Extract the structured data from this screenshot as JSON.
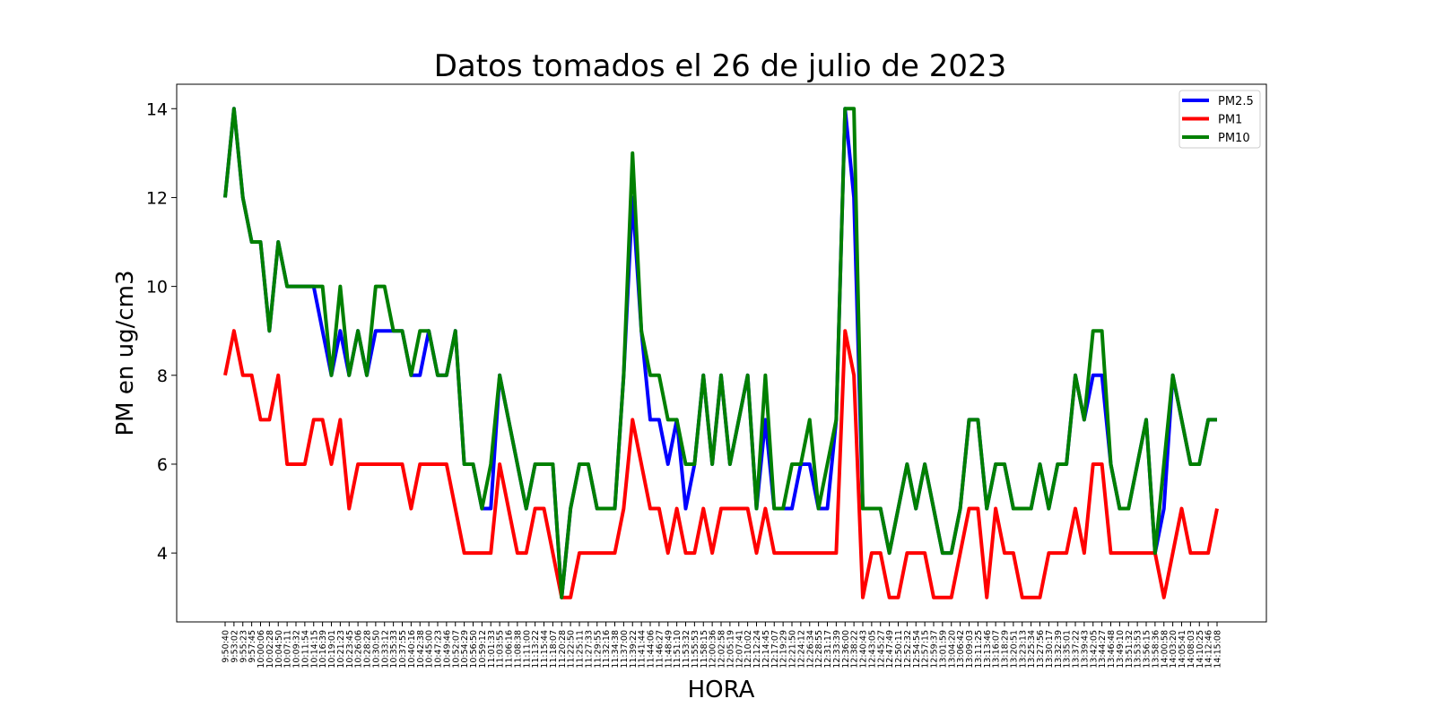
{
  "chart_data": {
    "type": "line",
    "title": "Datos tomados el 26 de julio de 2023",
    "xlabel": "HORA",
    "ylabel": "PM en ug/cm3",
    "ylim": [
      2.45,
      14.55
    ],
    "yticks": [
      4,
      6,
      8,
      10,
      12,
      14
    ],
    "grid": false,
    "legend_position": "top-right",
    "categories": [
      "9:50:40",
      "9:53:02",
      "9:55:23",
      "9:57:45",
      "10:00:06",
      "10:02:28",
      "10:04:50",
      "10:07:11",
      "10:09:32",
      "10:11:54",
      "10:14:15",
      "10:16:39",
      "10:19:01",
      "10:21:23",
      "10:23:45",
      "10:26:06",
      "10:28:28",
      "10:30:50",
      "10:33:12",
      "10:35:33",
      "10:37:55",
      "10:40:16",
      "10:42:38",
      "10:45:00",
      "10:47:23",
      "10:49:46",
      "10:52:07",
      "10:54:29",
      "10:56:50",
      "10:59:12",
      "11:01:33",
      "11:03:55",
      "11:06:16",
      "11:08:38",
      "11:11:00",
      "11:13:22",
      "11:15:44",
      "11:18:07",
      "11:20:28",
      "11:22:50",
      "11:25:11",
      "11:27:33",
      "11:29:55",
      "11:32:16",
      "11:34:38",
      "11:37:00",
      "11:39:22",
      "11:41:44",
      "11:44:06",
      "11:46:27",
      "11:48:49",
      "11:51:10",
      "11:53:32",
      "11:55:53",
      "11:58:15",
      "12:00:36",
      "12:02:58",
      "12:05:19",
      "12:07:41",
      "12:10:02",
      "12:12:24",
      "12:14:45",
      "12:17:07",
      "12:19:29",
      "12:21:50",
      "12:24:12",
      "12:26:34",
      "12:28:55",
      "12:31:17",
      "12:33:39",
      "12:36:00",
      "12:38:22",
      "12:40:43",
      "12:43:05",
      "12:45:27",
      "12:47:49",
      "12:50:11",
      "12:52:32",
      "12:54:54",
      "12:57:15",
      "12:59:37",
      "13:01:59",
      "13:04:20",
      "13:06:42",
      "13:09:03",
      "13:11:25",
      "13:13:46",
      "13:16:07",
      "13:18:29",
      "13:20:51",
      "13:23:13",
      "13:25:34",
      "13:27:56",
      "13:30:17",
      "13:32:39",
      "13:35:01",
      "13:37:22",
      "13:39:43",
      "13:42:05",
      "13:44:27",
      "13:46:48",
      "13:49:10",
      "13:51:32",
      "13:53:53",
      "13:56:15",
      "13:58:36",
      "14:00:58",
      "14:03:20",
      "14:05:41",
      "14:08:03",
      "14:10:25",
      "14:12:46",
      "14:15:08"
    ],
    "visible_tick_labels": [
      "9:50:40",
      "9:53:02",
      "9:55:23",
      "9:57:45",
      "10:00:06",
      "10:02:28",
      "10:04:50",
      "10:07:11",
      "10:09:32",
      "10:11:54",
      "10:14:15",
      "10:16:39",
      "10:19:01",
      "10:21:23",
      "10:23:45",
      "10:26:06",
      "10:28:28",
      "10:30:50",
      "10:33:12",
      "10:35:33",
      "10:37:55",
      "10:40:16",
      "10:42:38",
      "10:45:00",
      "10:47:23",
      "10:49:46",
      "10:52:07",
      "10:54:29",
      "10:56:50",
      "10:59:12",
      "11:01:33",
      "11:03:55",
      "11:06:16",
      "11:08:38",
      "11:11:00",
      "11:13:22",
      "11:15:44",
      "11:18:07",
      "11:20:28",
      "11:22:50",
      "11:25:11",
      "11:27:33",
      "11:29:55",
      "11:32:16",
      "11:34:38",
      "11:37:00",
      "11:39:22",
      "11:41:44",
      "11:44:06",
      "11:46:27",
      "11:48:49",
      "11:51:10",
      "11:53:32",
      "11:55:53",
      "11:58:15",
      "12:00:36",
      "12:02:58",
      "12:05:19",
      "12:07:41",
      "12:10:02",
      "12:12:24",
      "12:14:45",
      "12:17:07",
      "12:19:29",
      "12:21:50",
      "12:24:12",
      "12:26:34",
      "12:28:55",
      "12:31:17",
      "12:33:39",
      "12:36:00",
      "12:38:22",
      "12:40:43",
      "12:43:05",
      "12:45:27",
      "12:47:49",
      "12:50:11",
      "12:52:32",
      "12:54:54",
      "12:57:15",
      "12:59:37",
      "13:01:59",
      "13:04:20",
      "13:06:42",
      "13:09:03",
      "13:11:25",
      "13:13:46",
      "13:16:07",
      "13:18:29",
      "13:20:51",
      "13:23:13",
      "13:25:34",
      "13:27:56",
      "13:30:17",
      "13:32:39",
      "13:35:01",
      "13:37:22",
      "13:39:43",
      "13:42:05",
      "13:44:27",
      "13:46:48",
      "13:49:10",
      "13:51:32",
      "13:53:53",
      "13:56:15",
      "13:58:36",
      "14:00:58",
      "14:03:20",
      "14:05:41",
      "14:08:03",
      "14:10:25",
      "14:12:46",
      "14:15:08"
    ],
    "series": [
      {
        "name": "PM2.5",
        "color": "#0000ff",
        "values": [
          12,
          14,
          12,
          11,
          11,
          9,
          11,
          10,
          10,
          10,
          10,
          9,
          8,
          9,
          8,
          9,
          8,
          9,
          9,
          9,
          9,
          8,
          8,
          9,
          8,
          8,
          9,
          6,
          6,
          5,
          5,
          8,
          7,
          6,
          5,
          6,
          6,
          6,
          3,
          5,
          6,
          6,
          5,
          5,
          5,
          8,
          12,
          9,
          7,
          7,
          6,
          7,
          5,
          6,
          8,
          6,
          8,
          6,
          7,
          8,
          5,
          7,
          5,
          5,
          5,
          6,
          6,
          5,
          5,
          7,
          14,
          12,
          5,
          5,
          5,
          4,
          5,
          6,
          5,
          6,
          5,
          4,
          4,
          5,
          7,
          7,
          5,
          6,
          6,
          5,
          5,
          5,
          6,
          5,
          6,
          6,
          8,
          7,
          8,
          8,
          6,
          5,
          5,
          6,
          7,
          4,
          5,
          8,
          7,
          6,
          6,
          7,
          7
        ]
      },
      {
        "name": "PM1",
        "color": "#ff0000",
        "values": [
          8,
          9,
          8,
          8,
          7,
          7,
          8,
          6,
          6,
          6,
          7,
          7,
          6,
          7,
          5,
          6,
          6,
          6,
          6,
          6,
          6,
          5,
          6,
          6,
          6,
          6,
          5,
          4,
          4,
          4,
          4,
          6,
          5,
          4,
          4,
          5,
          5,
          4,
          3,
          3,
          4,
          4,
          4,
          4,
          4,
          5,
          7,
          6,
          5,
          5,
          4,
          5,
          4,
          4,
          5,
          4,
          5,
          5,
          5,
          5,
          4,
          5,
          4,
          4,
          4,
          4,
          4,
          4,
          4,
          4,
          9,
          8,
          3,
          4,
          4,
          3,
          3,
          4,
          4,
          4,
          3,
          3,
          3,
          4,
          5,
          5,
          3,
          5,
          4,
          4,
          3,
          3,
          3,
          4,
          4,
          4,
          5,
          4,
          6,
          6,
          4,
          4,
          4,
          4,
          4,
          4,
          3,
          4,
          5,
          4,
          4,
          4,
          5
        ]
      },
      {
        "name": "PM10",
        "color": "#008000",
        "values": [
          12,
          14,
          12,
          11,
          11,
          9,
          11,
          10,
          10,
          10,
          10,
          10,
          8,
          10,
          8,
          9,
          8,
          10,
          10,
          9,
          9,
          8,
          9,
          9,
          8,
          8,
          9,
          6,
          6,
          5,
          6,
          8,
          7,
          6,
          5,
          6,
          6,
          6,
          3,
          5,
          6,
          6,
          5,
          5,
          5,
          8,
          13,
          9,
          8,
          8,
          7,
          7,
          6,
          6,
          8,
          6,
          8,
          6,
          7,
          8,
          5,
          8,
          5,
          5,
          6,
          6,
          7,
          5,
          6,
          7,
          14,
          14,
          5,
          5,
          5,
          4,
          5,
          6,
          5,
          6,
          5,
          4,
          4,
          5,
          7,
          7,
          5,
          6,
          6,
          5,
          5,
          5,
          6,
          5,
          6,
          6,
          8,
          7,
          9,
          9,
          6,
          5,
          5,
          6,
          7,
          4,
          6,
          8,
          7,
          6,
          6,
          7,
          7
        ]
      }
    ]
  }
}
